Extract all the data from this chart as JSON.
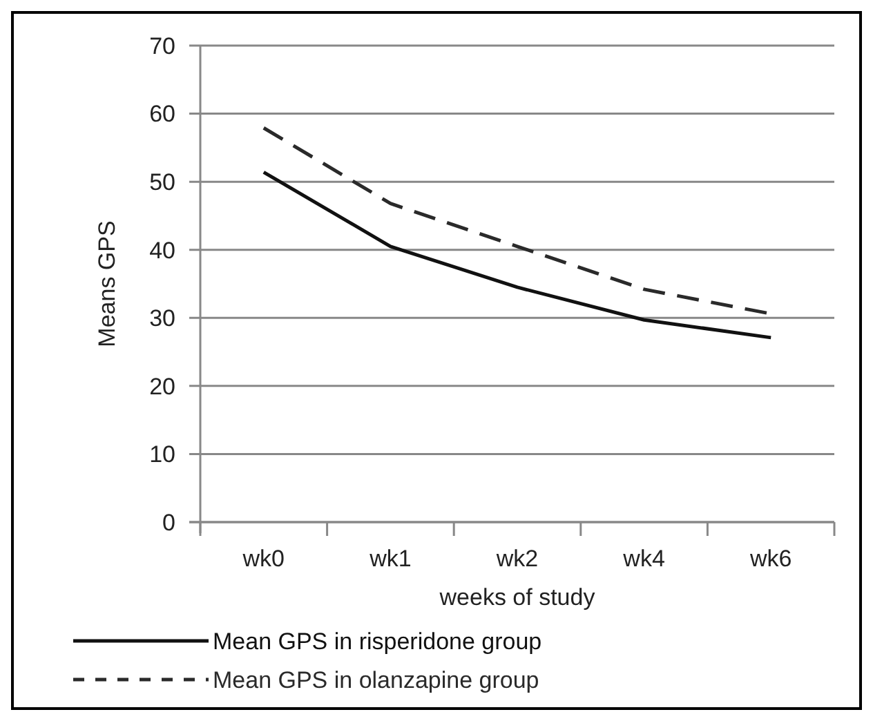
{
  "chart_data": {
    "type": "line",
    "xlabel": "weeks of study",
    "ylabel": "Means GPS",
    "categories": [
      "wk0",
      "wk1",
      "wk2",
      "wk4",
      "wk6"
    ],
    "series": [
      {
        "name": "Mean GPS in risperidone group",
        "color": "#111111",
        "line_style": "solid",
        "values": [
          51.4,
          40.5,
          34.5,
          29.7,
          27.1
        ]
      },
      {
        "name": "Mean GPS in olanzapine group",
        "color": "#2a2a2a",
        "line_style": "dashed",
        "values": [
          57.9,
          46.8,
          40.5,
          34.2,
          30.6
        ]
      }
    ],
    "ylim": [
      0,
      70
    ],
    "yticks": [
      0,
      10,
      20,
      30,
      40,
      50,
      60,
      70
    ],
    "grid": "y",
    "legend": "bottom",
    "marker": "none"
  }
}
